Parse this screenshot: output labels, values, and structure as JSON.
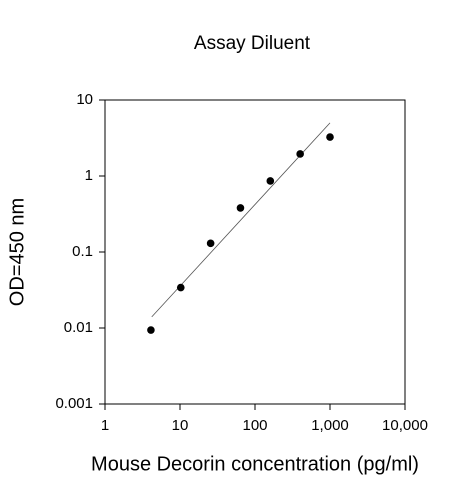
{
  "chart_data": {
    "type": "scatter",
    "title": "Assay Diluent",
    "x_label": "Mouse Decorin concentration (pg/ml)",
    "y_label": "OD=450 nm",
    "x_scale": "log",
    "y_scale": "log",
    "x": [
      4.096,
      10.24,
      25.6,
      64,
      160,
      400,
      1000
    ],
    "values": [
      0.0094,
      0.034,
      0.13,
      0.38,
      0.86,
      1.95,
      3.25
    ],
    "color": "#000000",
    "fit_line": {
      "x": [
        4.2,
        1000
      ],
      "values": [
        0.014,
        5.0
      ],
      "color": "#555555"
    },
    "xlim": [
      1,
      10000
    ],
    "ylim": [
      0.001,
      10
    ],
    "xticks": [
      1,
      10,
      100,
      {
        "value": 1000,
        "label": "1,000"
      },
      {
        "value": 10000,
        "label": "10,000"
      }
    ],
    "yticks": [
      0.001,
      0.01,
      0.1,
      1,
      10
    ]
  }
}
